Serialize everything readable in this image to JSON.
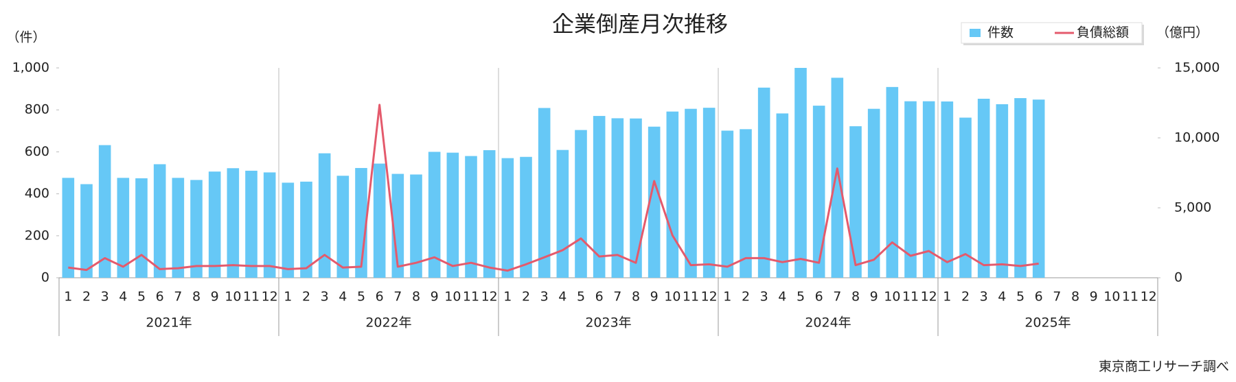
{
  "chart_data": {
    "type": "bar",
    "title": "企業倒産月次推移",
    "y_label": "（件）",
    "y2_label": "（億円）",
    "source": "東京商工リサーチ調べ",
    "categories": [
      "1",
      "2",
      "3",
      "4",
      "5",
      "6",
      "7",
      "8",
      "9",
      "10",
      "11",
      "12",
      "1",
      "2",
      "3",
      "4",
      "5",
      "6",
      "7",
      "8",
      "9",
      "10",
      "11",
      "12",
      "1",
      "2",
      "3",
      "4",
      "5",
      "6",
      "7",
      "8",
      "9",
      "10",
      "11",
      "12",
      "1",
      "2",
      "3",
      "4",
      "5",
      "6",
      "7",
      "8",
      "9",
      "10",
      "11",
      "12",
      "1",
      "2",
      "3",
      "4",
      "5",
      "6",
      "7",
      "8",
      "9",
      "10",
      "11",
      "12"
    ],
    "groups": [
      "2021年",
      "2022年",
      "2023年",
      "2024年",
      "2025年"
    ],
    "ylim": [
      0,
      1000
    ],
    "yticks": [
      0,
      200,
      400,
      600,
      800,
      {
        "value": 1000,
        "label": "1,000"
      }
    ],
    "y2lim": [
      0,
      15000
    ],
    "y2ticks": [
      0,
      {
        "value": 5000,
        "label": "5,000"
      },
      {
        "value": 10000,
        "label": "10,000"
      },
      {
        "value": 15000,
        "label": "15,000"
      }
    ],
    "grid": false,
    "legend": "top-right",
    "series": [
      {
        "name": "件数",
        "type": "bar",
        "color": "#66c8f6",
        "axis": "y",
        "values": [
          476,
          446,
          632,
          476,
          474,
          541,
          476,
          466,
          506,
          522,
          510,
          502,
          453,
          458,
          593,
          486,
          523,
          544,
          495,
          492,
          600,
          596,
          580,
          608,
          570,
          576,
          809,
          609,
          704,
          771,
          760,
          759,
          720,
          792,
          805,
          810,
          701,
          708,
          906,
          783,
          1000,
          820,
          953,
          722,
          805,
          909,
          841,
          841,
          840,
          763,
          853,
          827,
          856,
          849,
          null,
          null,
          null,
          null,
          null,
          null
        ]
      },
      {
        "name": "負債総額",
        "type": "line",
        "color": "#e45a6c",
        "axis": "y2",
        "values": [
          730,
          560,
          1400,
          790,
          1630,
          620,
          680,
          840,
          840,
          900,
          840,
          840,
          620,
          680,
          1630,
          730,
          790,
          12360,
          790,
          1070,
          1460,
          840,
          1070,
          730,
          510,
          960,
          1460,
          1970,
          2810,
          1520,
          1630,
          1070,
          6910,
          3030,
          900,
          960,
          790,
          1400,
          1400,
          1120,
          1350,
          1070,
          7810,
          900,
          1290,
          2530,
          1570,
          1910,
          1120,
          1690,
          900,
          960,
          840,
          1010,
          null,
          null,
          null,
          null,
          null,
          null
        ]
      }
    ]
  }
}
